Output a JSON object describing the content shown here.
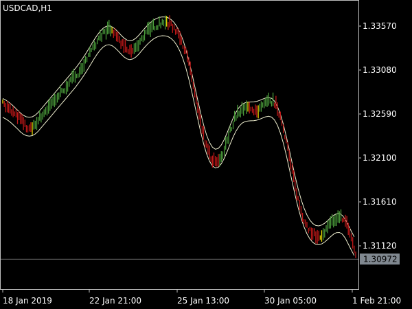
{
  "chart_data": {
    "type": "bar",
    "title": "USDCAD,H1",
    "y_ticks": [
      "1.33570",
      "1.33080",
      "1.32590",
      "1.32100",
      "1.31610",
      "1.31120"
    ],
    "ylim": [
      1.307,
      1.34
    ],
    "x_ticks": [
      "18 Jan 2019",
      "22 Jan 21:00",
      "25 Jan 13:00",
      "30 Jan 05:00",
      "1 Feb 21:00"
    ],
    "current_price": 1.30972,
    "current_price_label": "1.30972",
    "colors": {
      "background": "#000000",
      "axis": "#c0c0c0",
      "bull": "#4a9a3a",
      "bear": "#c01818",
      "neutral": "#e8d800",
      "band": "#f0f0d0",
      "price_line": "#808080",
      "price_tag_bg": "#808890"
    },
    "series": [
      {
        "values": [
          1.327,
          1.3265,
          1.3262,
          1.3258,
          1.3255,
          1.325,
          1.3245,
          1.324,
          1.3245,
          1.325,
          1.3255,
          1.326,
          1.3265,
          1.327,
          1.3275,
          1.328,
          1.3285,
          1.329,
          1.3295,
          1.33,
          1.3305,
          1.331,
          1.3318,
          1.3325,
          1.3332,
          1.334,
          1.3346,
          1.335,
          1.3352,
          1.335,
          1.3345,
          1.3338,
          1.3332,
          1.3328,
          1.3328,
          1.3332,
          1.3338,
          1.3344,
          1.335,
          1.3354,
          1.3356,
          1.3358,
          1.336,
          1.336,
          1.3358,
          1.3355,
          1.335,
          1.3342,
          1.333,
          1.3315,
          1.3295,
          1.3272,
          1.325,
          1.3232,
          1.3218,
          1.3208,
          1.3204,
          1.3206,
          1.3214,
          1.3226,
          1.324,
          1.3252,
          1.326,
          1.3264,
          1.3265,
          1.3264,
          1.3262,
          1.3262,
          1.3264,
          1.3268,
          1.3272,
          1.3272,
          1.3268,
          1.3258,
          1.3242,
          1.3222,
          1.32,
          1.3178,
          1.316,
          1.3145,
          1.3135,
          1.3128,
          1.3124,
          1.3122,
          1.3123,
          1.3127,
          1.3133,
          1.3138,
          1.3142,
          1.3143,
          1.314,
          1.3132,
          1.3118,
          1.31
        ]
      }
    ]
  }
}
